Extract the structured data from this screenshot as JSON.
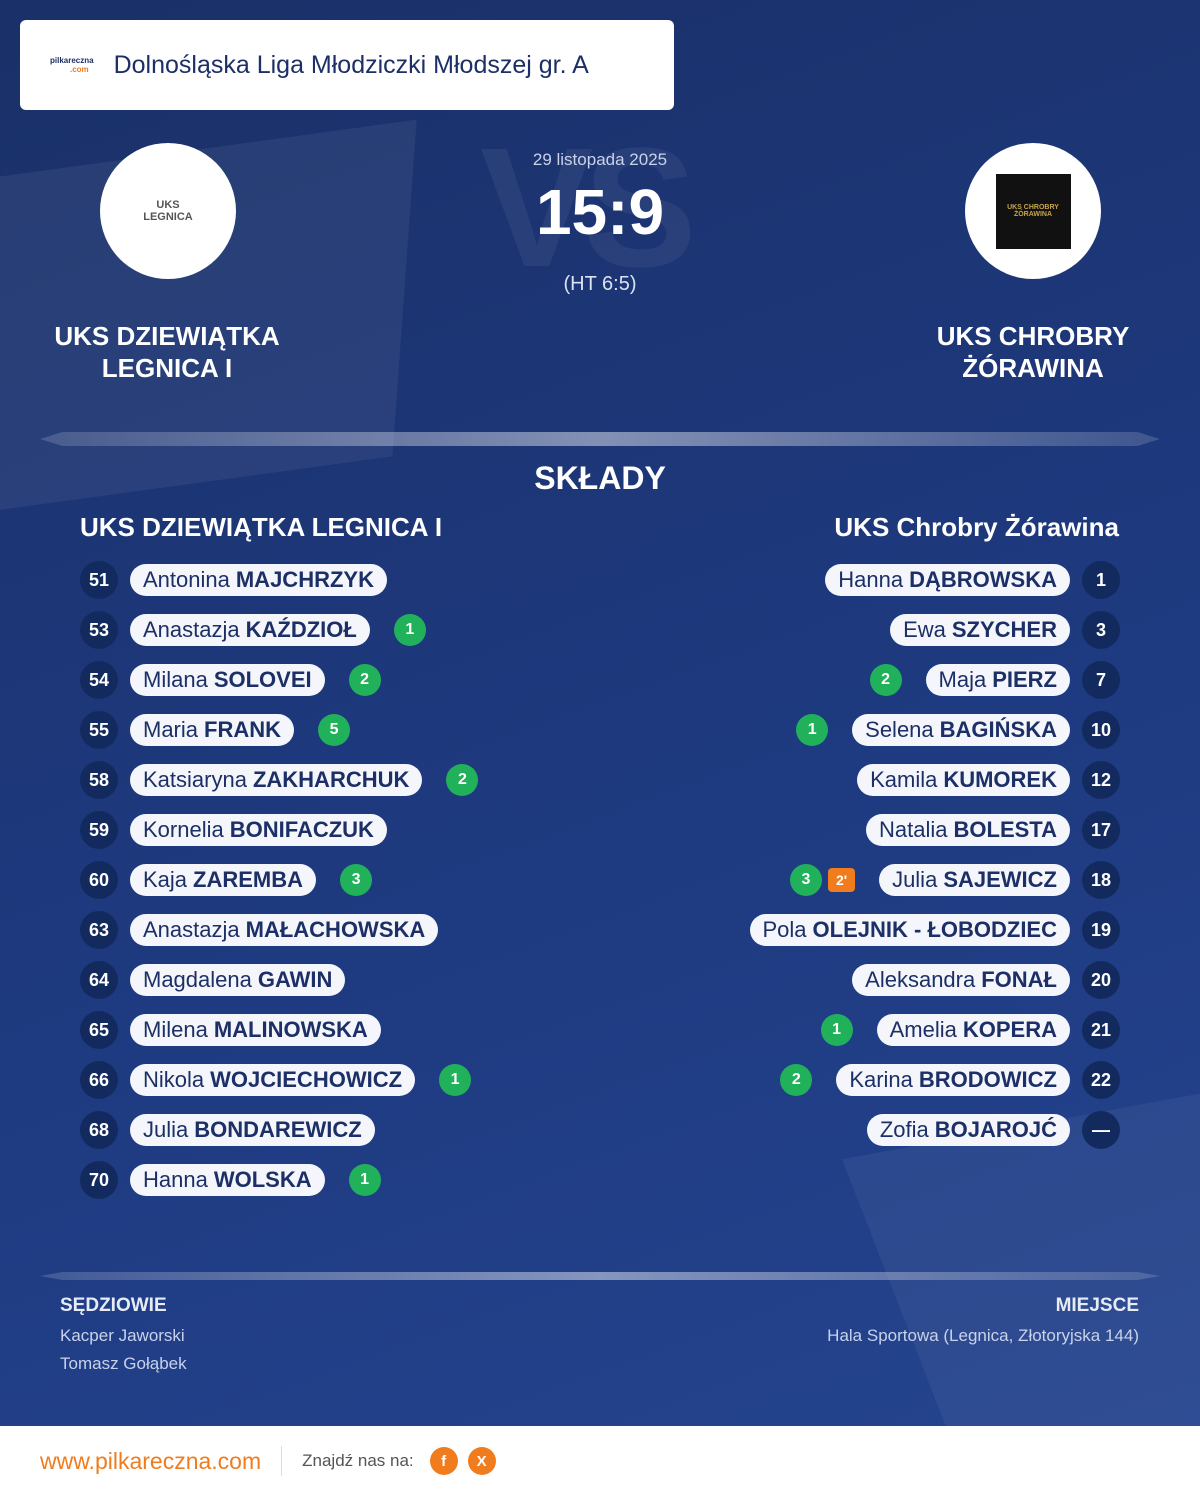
{
  "header": {
    "logo": "pilkareczna",
    "logo_suffix": ".com",
    "league": "Dolnośląska Liga Młodziczki Młodszej gr. A"
  },
  "match": {
    "vs": "VS",
    "date": "29 listopada 2025",
    "score": "15:9",
    "ht": "(HT 6:5)",
    "home": {
      "name": "UKS DZIEWIĄTKA\nLEGNICA I",
      "crest": "UKS LEGNICA"
    },
    "away": {
      "name": "UKS CHROBRY\nŻÓRAWINA",
      "crest": "UKS CHROBRY ŻÓRAWINA"
    }
  },
  "section_title": "SKŁADY",
  "home_lineup": {
    "title": "UKS DZIEWIĄTKA LEGNICA I",
    "players": [
      {
        "number": 51,
        "first": "Antonina",
        "last": "MAJCHRZYK"
      },
      {
        "number": 53,
        "first": "Anastazja",
        "last": "KAŹDZIOŁ",
        "goals": 1
      },
      {
        "number": 54,
        "first": "Milana",
        "last": "SOLOVEI",
        "goals": 2
      },
      {
        "number": 55,
        "first": "Maria",
        "last": "FRANK",
        "goals": 5
      },
      {
        "number": 58,
        "first": "Katsiaryna",
        "last": "ZAKHARCHUK",
        "goals": 2
      },
      {
        "number": 59,
        "first": "Kornelia",
        "last": "BONIFACZUK"
      },
      {
        "number": 60,
        "first": "Kaja",
        "last": "ZAREMBA",
        "goals": 3
      },
      {
        "number": 63,
        "first": "Anastazja",
        "last": "MAŁACHOWSKA"
      },
      {
        "number": 64,
        "first": "Magdalena",
        "last": "GAWIN"
      },
      {
        "number": 65,
        "first": "Milena",
        "last": "MALINOWSKA"
      },
      {
        "number": 66,
        "first": "Nikola",
        "last": "WOJCIECHOWICZ",
        "goals": 1
      },
      {
        "number": 68,
        "first": "Julia",
        "last": "BONDAREWICZ"
      },
      {
        "number": 70,
        "first": "Hanna",
        "last": "WOLSKA",
        "goals": 1
      }
    ]
  },
  "away_lineup": {
    "title": "UKS Chrobry Żórawina",
    "players": [
      {
        "number": 1,
        "first": "Hanna",
        "last": "DĄBROWSKA"
      },
      {
        "number": 3,
        "first": "Ewa",
        "last": "SZYCHER"
      },
      {
        "number": 7,
        "first": "Maja",
        "last": "PIERZ",
        "goals": 2
      },
      {
        "number": 10,
        "first": "Selena",
        "last": "BAGIŃSKA",
        "goals": 1
      },
      {
        "number": 12,
        "first": "Kamila",
        "last": "KUMOREK"
      },
      {
        "number": 17,
        "first": "Natalia",
        "last": "BOLESTA"
      },
      {
        "number": 18,
        "first": "Julia",
        "last": "SAJEWICZ",
        "goals": 3,
        "penalties": "2'"
      },
      {
        "number": 19,
        "first": "Pola",
        "last": "OLEJNIK - ŁOBODZIEC"
      },
      {
        "number": 20,
        "first": "Aleksandra",
        "last": "FONAŁ"
      },
      {
        "number": 21,
        "first": "Amelia",
        "last": "KOPERA",
        "goals": 1
      },
      {
        "number": 22,
        "first": "Karina",
        "last": "BRODOWICZ",
        "goals": 2
      },
      {
        "number": "—",
        "first": "Zofia",
        "last": "BOJAROJĆ"
      }
    ]
  },
  "officials": {
    "title": "SĘDZIOWIE",
    "names": [
      "Kacper Jaworski",
      "Tomasz Gołąbek"
    ]
  },
  "venue": {
    "title": "MIEJSCE",
    "text": "Hala Sportowa (Legnica, Złotoryjska 144)"
  },
  "footer": {
    "site": "www.pilkareczna.com",
    "find_us": "Znajdź nas na:",
    "social": [
      "f",
      "X"
    ]
  }
}
